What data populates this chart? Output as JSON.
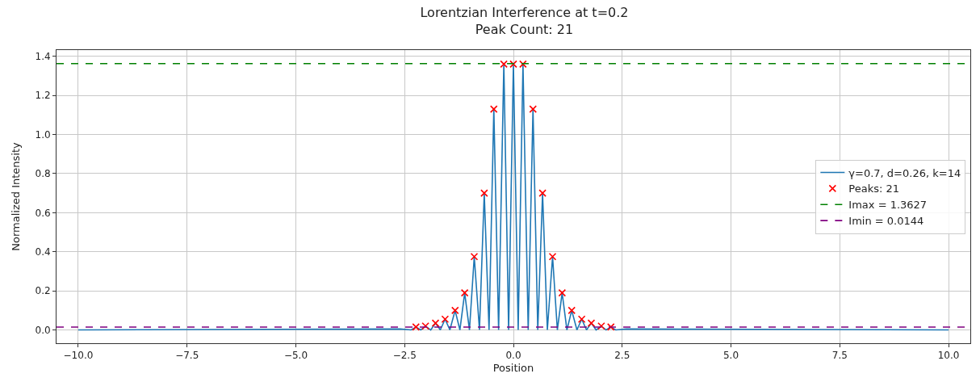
{
  "chart_data": {
    "type": "line",
    "title": "Lorentzian Interference at t=0.2\nPeak Count: 21",
    "xlabel": "Position",
    "ylabel": "Normalized Intensity",
    "series": [
      {
        "name": "γ=0.7, d=0.26, k=14",
        "color": "#1f77b4",
        "x": [
          -10,
          -2.6,
          -2.35,
          -2.24,
          -2.13,
          -2.02,
          -1.9,
          -1.79,
          -1.68,
          -1.57,
          -1.46,
          -1.34,
          -1.23,
          -1.12,
          -1.01,
          -0.9,
          -0.78,
          -0.67,
          -0.56,
          -0.45,
          -0.34,
          -0.22,
          -0.11,
          0,
          0.11,
          0.22,
          0.34,
          0.45,
          0.56,
          0.67,
          0.78,
          0.9,
          1.01,
          1.12,
          1.23,
          1.34,
          1.46,
          1.57,
          1.68,
          1.79,
          1.9,
          2.02,
          2.13,
          2.24,
          2.35,
          2.6,
          10
        ],
        "values": [
          0,
          0.005,
          0,
          0.015,
          0,
          0.02,
          0,
          0.035,
          0,
          0.055,
          0,
          0.1,
          0,
          0.19,
          0,
          0.375,
          0,
          0.7,
          0,
          1.13,
          0,
          1.36,
          0,
          1.36,
          0,
          1.36,
          0,
          1.13,
          0,
          0.7,
          0,
          0.375,
          0,
          0.19,
          0,
          0.1,
          0,
          0.055,
          0,
          0.035,
          0,
          0.02,
          0,
          0.015,
          0,
          0.005,
          0
        ]
      },
      {
        "name": "Peaks: 21",
        "type": "scatter",
        "color": "#ff0000",
        "marker": "cross",
        "x": [
          -2.24,
          -2.02,
          -1.79,
          -1.57,
          -1.34,
          -1.12,
          -0.9,
          -0.67,
          -0.45,
          -0.22,
          0,
          0.22,
          0.45,
          0.67,
          0.9,
          1.12,
          1.34,
          1.57,
          1.79,
          2.02,
          2.24
        ],
        "values": [
          0.015,
          0.02,
          0.035,
          0.055,
          0.1,
          0.19,
          0.375,
          0.7,
          1.13,
          1.36,
          1.36,
          1.36,
          1.13,
          0.7,
          0.375,
          0.19,
          0.1,
          0.055,
          0.035,
          0.02,
          0.015
        ]
      }
    ],
    "ref_lines": [
      {
        "axis": "y",
        "value": 1.3627,
        "label": "Imax = 1.3627",
        "color": "#008000",
        "line_style": "dashed"
      },
      {
        "axis": "y",
        "value": 0.0144,
        "label": "Imin = 0.0144",
        "color": "#800080",
        "line_style": "dashed"
      }
    ],
    "xlim": [
      -10.5,
      10.5
    ],
    "xticks": [
      {
        "value": -10,
        "label": "−10.0"
      },
      {
        "value": -7.5,
        "label": "−7.5"
      },
      {
        "value": -5,
        "label": "−5.0"
      },
      {
        "value": -2.5,
        "label": "−2.5"
      },
      {
        "value": 0,
        "label": "0.0"
      },
      {
        "value": 2.5,
        "label": "2.5"
      },
      {
        "value": 5,
        "label": "5.0"
      },
      {
        "value": 7.5,
        "label": "7.5"
      },
      {
        "value": 10,
        "label": "10.0"
      }
    ],
    "ylim": [
      -0.068,
      1.432
    ],
    "yticks": [
      {
        "value": 0,
        "label": "0.0"
      },
      {
        "value": 0.2,
        "label": "0.2"
      },
      {
        "value": 0.4,
        "label": "0.4"
      },
      {
        "value": 0.6,
        "label": "0.6"
      },
      {
        "value": 0.8,
        "label": "0.8"
      },
      {
        "value": 1.0,
        "label": "1.0"
      },
      {
        "value": 1.2,
        "label": "1.2"
      },
      {
        "value": 1.4,
        "label": "1.4"
      }
    ],
    "grid": true,
    "legend": "right"
  }
}
